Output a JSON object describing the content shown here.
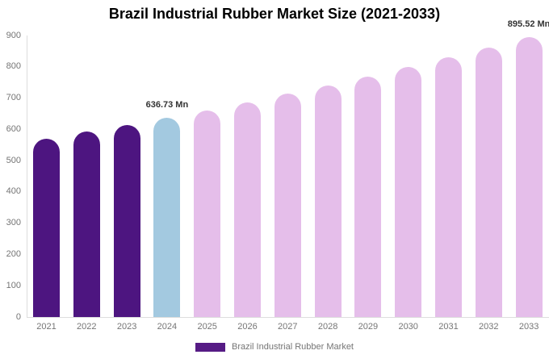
{
  "title": "Brazil Industrial Rubber Market Size (2021-2033)",
  "legend": {
    "label": "Brazil Industrial Rubber Market",
    "swatch_color": "#561b85"
  },
  "chart_data": {
    "type": "bar",
    "title": "Brazil Industrial Rubber Market Size (2021-2033)",
    "unit": "Mn",
    "categories": [
      "2021",
      "2022",
      "2023",
      "2024",
      "2025",
      "2026",
      "2027",
      "2028",
      "2029",
      "2030",
      "2031",
      "2032",
      "2033"
    ],
    "values": [
      570,
      592,
      614,
      636.73,
      661.3,
      686.8,
      713.4,
      741,
      769.5,
      799.2,
      830.1,
      862.1,
      895.52
    ],
    "bar_colors": [
      "#4d1580",
      "#4d1580",
      "#4d1580",
      "#a3c9e0",
      "#e5beea",
      "#e5beea",
      "#e5beea",
      "#e5beea",
      "#e5beea",
      "#e5beea",
      "#e5beea",
      "#e5beea",
      "#e5beea"
    ],
    "annotations": [
      {
        "category": "2024",
        "text": "636.73 Mn"
      },
      {
        "category": "2033",
        "text": "895.52 Mn"
      }
    ],
    "ylim": [
      0,
      900
    ],
    "yticks": [
      0,
      100,
      200,
      300,
      400,
      500,
      600,
      700,
      800,
      900
    ],
    "xlabel": "",
    "ylabel": "",
    "grid": false,
    "legend_position": "bottom",
    "colors": {
      "historical_bar": "#4d1580",
      "current_year_bar": "#a3c9e0",
      "forecast_bar": "#e5beea",
      "axis_line": "#dddddd",
      "tick_label": "#757575",
      "annotation_text": "#333333",
      "title_text": "#000000"
    }
  }
}
